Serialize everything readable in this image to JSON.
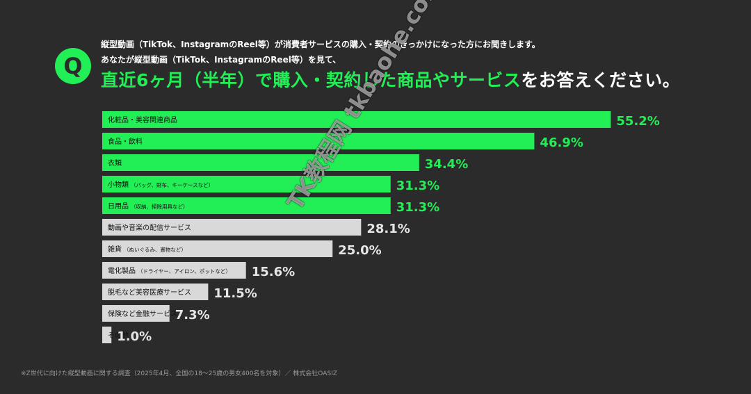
{
  "question": {
    "badge_letter": "Q",
    "line1": "縦型動画（TikTok、InstagramのReel等）が消費者サービスの購入・契約のきっかけになった方にお聞きします。",
    "line2": "あなたが縦型動画（TikTok、InstagramのReel等）を見て、",
    "line3_highlight": "直近6ヶ月（半年）で購入・契約した商品やサービス",
    "line3_rest": "をお答えください。"
  },
  "footnote": "※Z世代に向けた縦型動画に関する調査（2025年4月、全国の18～25歳の男女400名を対象）／ 株式会社OASIZ",
  "watermark": "TK教程网 tkbaohe.com",
  "colors": {
    "highlight": "#22ee55",
    "bar_green": "#22ee55",
    "bar_gray": "#d9d9d9",
    "background": "#2b2b2b",
    "text_white": "#ffffff"
  },
  "chart_data": {
    "type": "bar",
    "orientation": "horizontal",
    "categories": [
      "化粧品・美容関連商品",
      "食品・飲料",
      "衣類",
      "小物類",
      "日用品",
      "動画や音楽の配信サービス",
      "雑貨",
      "電化製品",
      "脱毛など美容医療サービス",
      "保険など金融サービス",
      "その他"
    ],
    "category_notes": [
      "",
      "",
      "",
      "（バッグ、財布、キーケースなど）",
      "（収納、掃除用具など）",
      "",
      "（ぬいぐるみ、置物など）",
      "（ドライヤー、アイロン、ポットなど）",
      "",
      "",
      ""
    ],
    "values": [
      55.2,
      46.9,
      34.4,
      31.3,
      31.3,
      28.1,
      25.0,
      15.6,
      11.5,
      7.3,
      1.0
    ],
    "value_labels": [
      "55.2%",
      "46.9%",
      "34.4%",
      "31.3%",
      "31.3%",
      "28.1%",
      "25.0%",
      "15.6%",
      "11.5%",
      "7.3%",
      "1.0%"
    ],
    "highlighted": [
      true,
      true,
      true,
      true,
      true,
      false,
      false,
      false,
      false,
      false,
      false
    ],
    "unit": "%",
    "xlim": [
      0,
      60
    ],
    "grid": false,
    "legend": "none"
  }
}
